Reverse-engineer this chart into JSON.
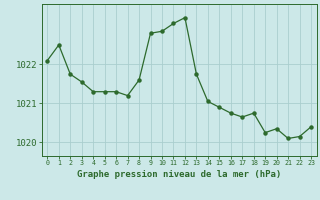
{
  "x": [
    0,
    1,
    2,
    3,
    4,
    5,
    6,
    7,
    8,
    9,
    10,
    11,
    12,
    13,
    14,
    15,
    16,
    17,
    18,
    19,
    20,
    21,
    22,
    23
  ],
  "y": [
    1022.1,
    1022.5,
    1021.75,
    1021.55,
    1021.3,
    1021.3,
    1021.3,
    1021.2,
    1021.6,
    1022.8,
    1022.85,
    1023.05,
    1023.2,
    1021.75,
    1021.05,
    1020.9,
    1020.75,
    1020.65,
    1020.75,
    1020.25,
    1020.35,
    1020.1,
    1020.15,
    1020.4
  ],
  "line_color": "#2d6a2d",
  "marker_color": "#2d6a2d",
  "bg_color": "#cce8e8",
  "grid_color": "#aacece",
  "axis_color": "#2d6a2d",
  "tick_label_color": "#2d6a2d",
  "xlabel": "Graphe pression niveau de la mer (hPa)",
  "xlabel_color": "#2d6a2d",
  "yticks": [
    1020,
    1021,
    1022
  ],
  "ylim": [
    1019.65,
    1023.55
  ],
  "xlim": [
    -0.5,
    23.5
  ]
}
